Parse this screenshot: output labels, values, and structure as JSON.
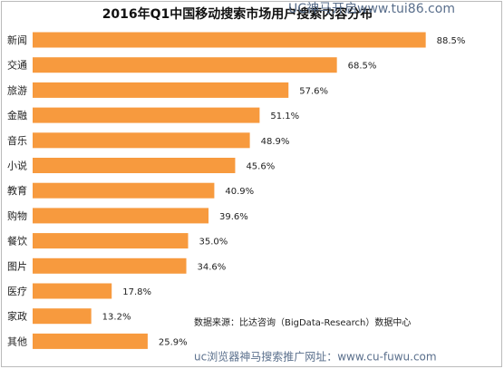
{
  "chart_data": {
    "type": "bar",
    "orientation": "horizontal",
    "title": "2016年Q1中国移动搜索市场用户搜索内容分布",
    "categories": [
      "新闻",
      "交通",
      "旅游",
      "金融",
      "音乐",
      "小说",
      "教育",
      "购物",
      "餐饮",
      "图片",
      "医疗",
      "家政",
      "其他"
    ],
    "values": [
      88.5,
      68.5,
      57.6,
      51.1,
      48.9,
      45.6,
      40.9,
      39.6,
      35.0,
      34.6,
      17.8,
      13.2,
      25.9
    ],
    "value_labels": [
      "88.5%",
      "68.5%",
      "57.6%",
      "51.1%",
      "48.9%",
      "45.6%",
      "40.9%",
      "39.6%",
      "35.0%",
      "34.6%",
      "17.8%",
      "13.2%",
      "25.9%"
    ],
    "color": "#f79a3e",
    "source": "数据来源：比达咨询（BigData-Research）数据中心",
    "watermarks": [
      "UC神马开启www.tui86.com",
      "uc浏览器神马搜索推广网址：www.cu-fuwu.com"
    ]
  }
}
